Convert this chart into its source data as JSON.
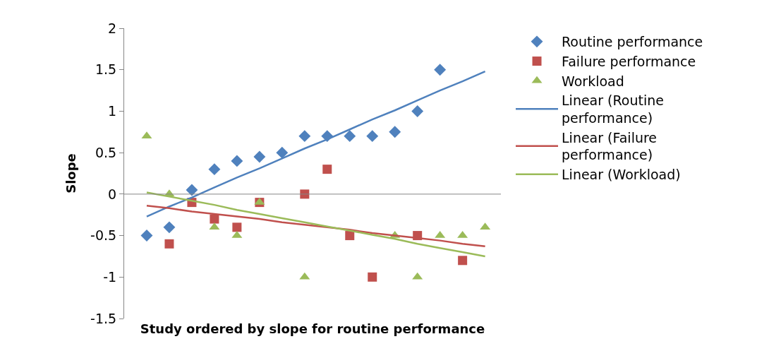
{
  "chart_data": {
    "type": "scatter",
    "xlabel": "Study ordered by slope for routine performance",
    "ylabel": "Slope",
    "categories": [
      null,
      null,
      null,
      null,
      null,
      null,
      null,
      null,
      null,
      null,
      null,
      null,
      null,
      null,
      null,
      null
    ],
    "series": [
      {
        "name": "Routine performance",
        "color": "#4f81bd",
        "marker": "diamond",
        "values": [
          -0.5,
          -0.4,
          0.05,
          0.3,
          0.4,
          0.45,
          0.5,
          0.7,
          0.7,
          0.7,
          0.7,
          0.75,
          1.0,
          1.5,
          null,
          null
        ]
      },
      {
        "name": "Failure performance",
        "color": "#c0504d",
        "marker": "square",
        "values": [
          null,
          -0.6,
          -0.1,
          -0.3,
          -0.4,
          -0.1,
          null,
          0.0,
          0.3,
          -0.5,
          -1.0,
          null,
          -0.5,
          null,
          -0.8,
          null
        ]
      },
      {
        "name": "Workload",
        "color": "#9bbb59",
        "marker": "triangle",
        "values": [
          0.7,
          0.0,
          null,
          -0.4,
          -0.5,
          -0.1,
          null,
          -1.0,
          null,
          null,
          null,
          -0.5,
          -1.0,
          -0.5,
          -0.5,
          -0.4
        ]
      },
      {
        "name": "Linear (Routine performance)",
        "type": "line",
        "color": "#4f81bd",
        "marker": "none",
        "values": [
          -0.27,
          -0.15,
          -0.04,
          0.08,
          0.2,
          0.31,
          0.43,
          0.55,
          0.66,
          0.78,
          0.9,
          1.01,
          1.13,
          1.25,
          1.36,
          1.48
        ]
      },
      {
        "name": "Linear (Failure performance)",
        "type": "line",
        "color": "#c0504d",
        "marker": "none",
        "values": [
          -0.14,
          -0.17,
          -0.21,
          -0.24,
          -0.27,
          -0.3,
          -0.34,
          -0.37,
          -0.4,
          -0.43,
          -0.47,
          -0.5,
          -0.53,
          -0.56,
          -0.6,
          -0.63
        ]
      },
      {
        "name": "Linear (Workload)",
        "type": "line",
        "color": "#9bbb59",
        "marker": "none",
        "values": [
          0.02,
          -0.03,
          -0.08,
          -0.13,
          -0.19,
          -0.24,
          -0.29,
          -0.34,
          -0.39,
          -0.44,
          -0.49,
          -0.54,
          -0.6,
          -0.65,
          -0.7,
          -0.75
        ]
      }
    ],
    "ylim": [
      -1.5,
      2
    ],
    "yticks": [
      -1.5,
      -1,
      -0.5,
      0,
      0.5,
      1,
      1.5,
      2
    ],
    "ref_lines": [
      {
        "axis": "y",
        "value": 0,
        "color": "#868686"
      }
    ],
    "legend": "right"
  }
}
